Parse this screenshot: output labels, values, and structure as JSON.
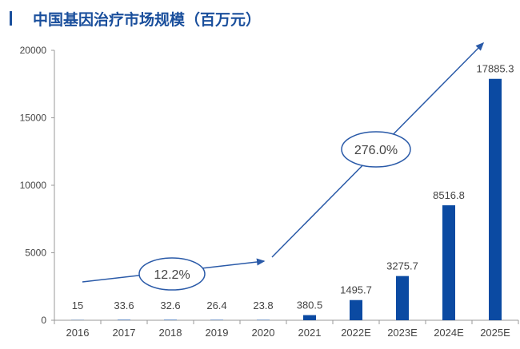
{
  "chart_data": {
    "type": "bar",
    "title": "中国基因治疗市场规模（百万元）",
    "categories": [
      "2016",
      "2017",
      "2018",
      "2019",
      "2020",
      "2021",
      "2022E",
      "2023E",
      "2024E",
      "2025E"
    ],
    "values": [
      15,
      33.6,
      32.6,
      26.4,
      23.8,
      380.5,
      1495.7,
      3275.7,
      8516.8,
      17885.3
    ],
    "data_labels": [
      "15",
      "33.6",
      "32.6",
      "26.4",
      "23.8",
      "380.5",
      "1495.7",
      "3275.7",
      "8516.8",
      "17885.3"
    ],
    "ylim": [
      0,
      20000
    ],
    "yticks": [
      0,
      5000,
      10000,
      15000,
      20000
    ],
    "grid": false,
    "bar_color": "#0b4aa2",
    "title_color": "#1a4f9c",
    "annotations": [
      {
        "text": "12.2%",
        "from": "2016",
        "to": "2020"
      },
      {
        "text": "276.0%",
        "from": "2020",
        "to": "2025E"
      }
    ]
  }
}
